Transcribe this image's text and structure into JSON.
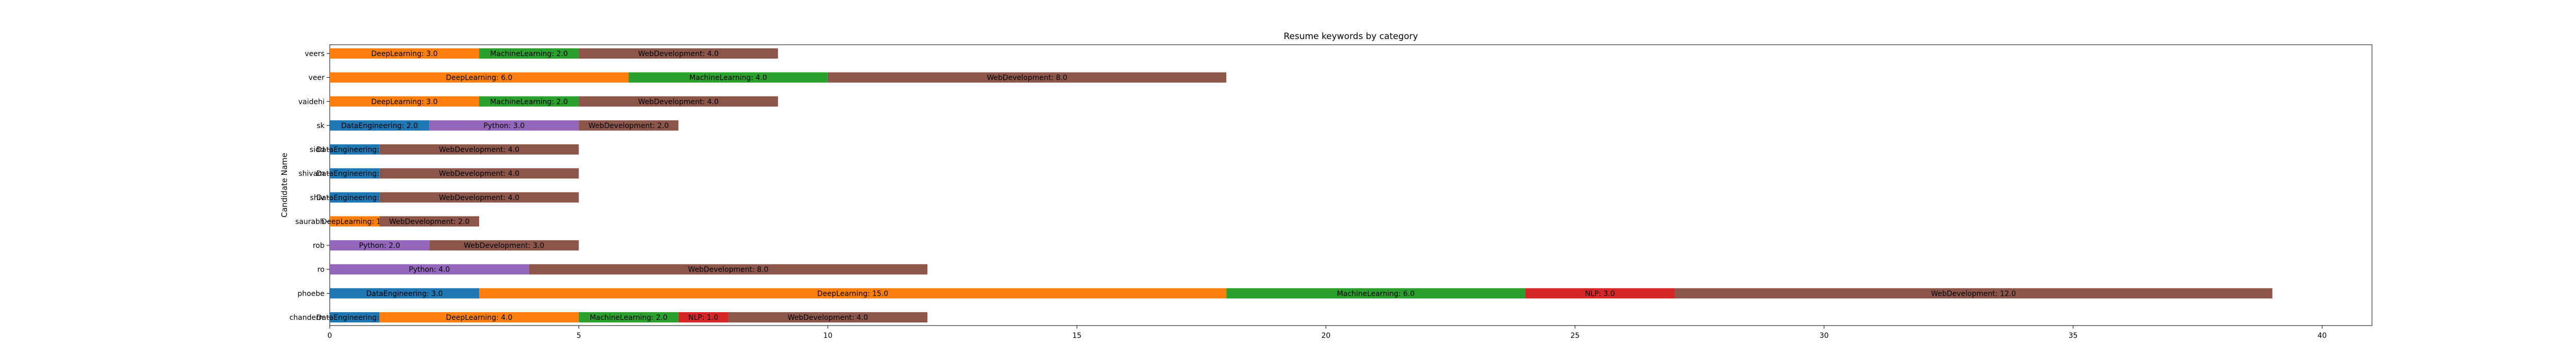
{
  "chart_data": {
    "type": "bar",
    "orientation": "horizontal",
    "stacked": true,
    "title": "Resume keywords by category",
    "xlabel": "",
    "ylabel": "Candidate Name",
    "xlim": [
      0,
      41
    ],
    "xticks": [
      0,
      5,
      10,
      15,
      20,
      25,
      30,
      35,
      40
    ],
    "grid": false,
    "legend": "none",
    "categories": [
      "chanderrr",
      "phoebe",
      "ro",
      "rob",
      "saurabh",
      "shiv",
      "shivam",
      "sidd",
      "sk",
      "vaidehi",
      "veer",
      "veers"
    ],
    "category_labels": [
      "chanderrr",
      "phoebe",
      "ro",
      "rob",
      "saurabh",
      "shiv",
      "shivam",
      "sidd",
      "sk",
      "vaidehi",
      "veer",
      "veers"
    ],
    "series": [
      {
        "name": "DataEngineering",
        "color": "#1f77b4",
        "values": [
          1,
          3,
          0,
          0,
          0,
          1,
          1,
          1,
          2,
          0,
          0,
          0
        ]
      },
      {
        "name": "DeepLearning",
        "color": "#ff7f0e",
        "values": [
          4,
          15,
          0,
          0,
          1,
          0,
          0,
          0,
          0,
          3,
          6,
          3
        ]
      },
      {
        "name": "MachineLearning",
        "color": "#2ca02c",
        "values": [
          2,
          6,
          0,
          0,
          0,
          0,
          0,
          0,
          0,
          2,
          4,
          2
        ]
      },
      {
        "name": "NLP",
        "color": "#d62728",
        "values": [
          1,
          3,
          0,
          0,
          0,
          0,
          0,
          0,
          0,
          0,
          0,
          0
        ]
      },
      {
        "name": "Python",
        "color": "#9467bd",
        "values": [
          0,
          0,
          4,
          2,
          0,
          0,
          0,
          0,
          3,
          0,
          0,
          0
        ]
      },
      {
        "name": "WebDevelopment",
        "color": "#8c564b",
        "values": [
          4,
          12,
          8,
          3,
          2,
          4,
          4,
          4,
          2,
          4,
          8,
          4
        ]
      }
    ]
  }
}
